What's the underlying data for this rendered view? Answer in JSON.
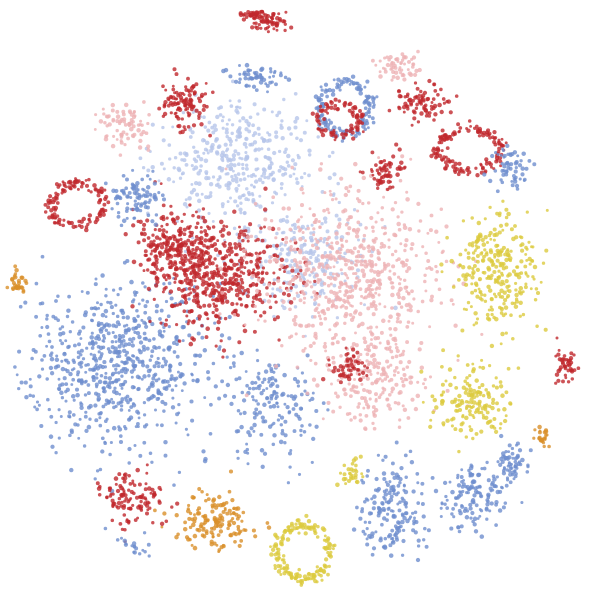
{
  "chart_data": {
    "type": "scatter",
    "title": "",
    "xlabel": "",
    "ylabel": "",
    "grid": false,
    "legend": "none",
    "axes_visible": false,
    "xlim": [
      0,
      100
    ],
    "ylim": [
      0,
      100
    ],
    "colors": {
      "blue": "#6f8fce",
      "light_blue": "#b7c6ea",
      "red": "#c0282d",
      "pink": "#eeb3b5",
      "yellow": "#dccb3e",
      "orange": "#d9902a"
    },
    "clusters": [
      {
        "color": "blue",
        "cx": 18,
        "cy": 40,
        "rx": 14,
        "ry": 13,
        "n": 700,
        "shape": "blob"
      },
      {
        "color": "blue",
        "cx": 45,
        "cy": 33,
        "rx": 7,
        "ry": 8,
        "n": 160,
        "shape": "blob"
      },
      {
        "color": "light_blue",
        "cx": 38,
        "cy": 74,
        "rx": 12,
        "ry": 9,
        "n": 380,
        "shape": "blob"
      },
      {
        "color": "light_blue",
        "cx": 50,
        "cy": 58,
        "rx": 10,
        "ry": 7,
        "n": 220,
        "shape": "blob"
      },
      {
        "color": "red",
        "cx": 36,
        "cy": 55,
        "rx": 10,
        "ry": 8,
        "n": 520,
        "shape": "blob"
      },
      {
        "color": "red",
        "cx": 28,
        "cy": 60,
        "rx": 6,
        "ry": 5,
        "n": 200,
        "shape": "blob"
      },
      {
        "color": "pink",
        "cx": 58,
        "cy": 55,
        "rx": 14,
        "ry": 13,
        "n": 620,
        "shape": "blob"
      },
      {
        "color": "pink",
        "cx": 62,
        "cy": 38,
        "rx": 8,
        "ry": 7,
        "n": 200,
        "shape": "blob"
      },
      {
        "color": "yellow",
        "cx": 83,
        "cy": 56,
        "rx": 6,
        "ry": 9,
        "n": 280,
        "shape": "blob"
      },
      {
        "color": "yellow",
        "cx": 78,
        "cy": 34,
        "rx": 6,
        "ry": 5,
        "n": 160,
        "shape": "blob"
      },
      {
        "color": "yellow",
        "cx": 50,
        "cy": 9,
        "rx": 5,
        "ry": 5,
        "n": 170,
        "shape": "ring"
      },
      {
        "color": "orange",
        "cx": 35,
        "cy": 14,
        "rx": 6,
        "ry": 4,
        "n": 150,
        "shape": "blob"
      },
      {
        "color": "red",
        "cx": 30,
        "cy": 84,
        "rx": 3.5,
        "ry": 4,
        "n": 110,
        "shape": "blob"
      },
      {
        "color": "red",
        "cx": 12,
        "cy": 67,
        "rx": 5,
        "ry": 4,
        "n": 120,
        "shape": "ring"
      },
      {
        "color": "pink",
        "cx": 20,
        "cy": 80,
        "rx": 4,
        "ry": 3,
        "n": 80,
        "shape": "blob"
      },
      {
        "color": "blue",
        "cx": 22,
        "cy": 68,
        "rx": 4,
        "ry": 3.5,
        "n": 90,
        "shape": "blob"
      },
      {
        "color": "red",
        "cx": 78,
        "cy": 76,
        "rx": 6,
        "ry": 4,
        "n": 140,
        "shape": "ring"
      },
      {
        "color": "blue",
        "cx": 57,
        "cy": 83,
        "rx": 5,
        "ry": 5,
        "n": 140,
        "shape": "ring"
      },
      {
        "color": "red",
        "cx": 56,
        "cy": 81,
        "rx": 4,
        "ry": 3,
        "n": 90,
        "shape": "ring"
      },
      {
        "color": "blue",
        "cx": 42,
        "cy": 88,
        "rx": 4,
        "ry": 2,
        "n": 60,
        "shape": "blob"
      },
      {
        "color": "red",
        "cx": 44,
        "cy": 97,
        "rx": 3,
        "ry": 1.5,
        "n": 50,
        "shape": "blob"
      },
      {
        "color": "pink",
        "cx": 66,
        "cy": 90,
        "rx": 3,
        "ry": 2,
        "n": 60,
        "shape": "blob"
      },
      {
        "color": "red",
        "cx": 70,
        "cy": 84,
        "rx": 4,
        "ry": 3,
        "n": 80,
        "shape": "blob"
      },
      {
        "color": "blue",
        "cx": 85,
        "cy": 73,
        "rx": 3,
        "ry": 3,
        "n": 60,
        "shape": "blob"
      },
      {
        "color": "blue",
        "cx": 65,
        "cy": 16,
        "rx": 5,
        "ry": 7,
        "n": 180,
        "shape": "blob"
      },
      {
        "color": "blue",
        "cx": 79,
        "cy": 18,
        "rx": 5,
        "ry": 5,
        "n": 140,
        "shape": "blob"
      },
      {
        "color": "blue",
        "cx": 85,
        "cy": 24,
        "rx": 3,
        "ry": 3,
        "n": 60,
        "shape": "blob"
      },
      {
        "color": "red",
        "cx": 21,
        "cy": 18,
        "rx": 5,
        "ry": 4,
        "n": 120,
        "shape": "blob"
      },
      {
        "color": "red",
        "cx": 94,
        "cy": 40,
        "rx": 2,
        "ry": 3,
        "n": 45,
        "shape": "blob"
      },
      {
        "color": "orange",
        "cx": 2,
        "cy": 54,
        "rx": 1.5,
        "ry": 2,
        "n": 30,
        "shape": "blob"
      },
      {
        "color": "orange",
        "cx": 90,
        "cy": 28,
        "rx": 1.5,
        "ry": 1.5,
        "n": 25,
        "shape": "blob"
      },
      {
        "color": "red",
        "cx": 64,
        "cy": 72,
        "rx": 3,
        "ry": 3,
        "n": 60,
        "shape": "blob"
      },
      {
        "color": "red",
        "cx": 58,
        "cy": 40,
        "rx": 3,
        "ry": 3,
        "n": 50,
        "shape": "blob"
      },
      {
        "color": "yellow",
        "cx": 58,
        "cy": 22,
        "rx": 2,
        "ry": 2,
        "n": 30,
        "shape": "blob"
      },
      {
        "color": "blue",
        "cx": 20,
        "cy": 9,
        "rx": 3,
        "ry": 2,
        "n": 50,
        "shape": "blob"
      },
      {
        "color": "red",
        "cx": 43,
        "cy": 98.5,
        "rx": 3,
        "ry": 0.8,
        "n": 40,
        "shape": "blob"
      }
    ]
  }
}
